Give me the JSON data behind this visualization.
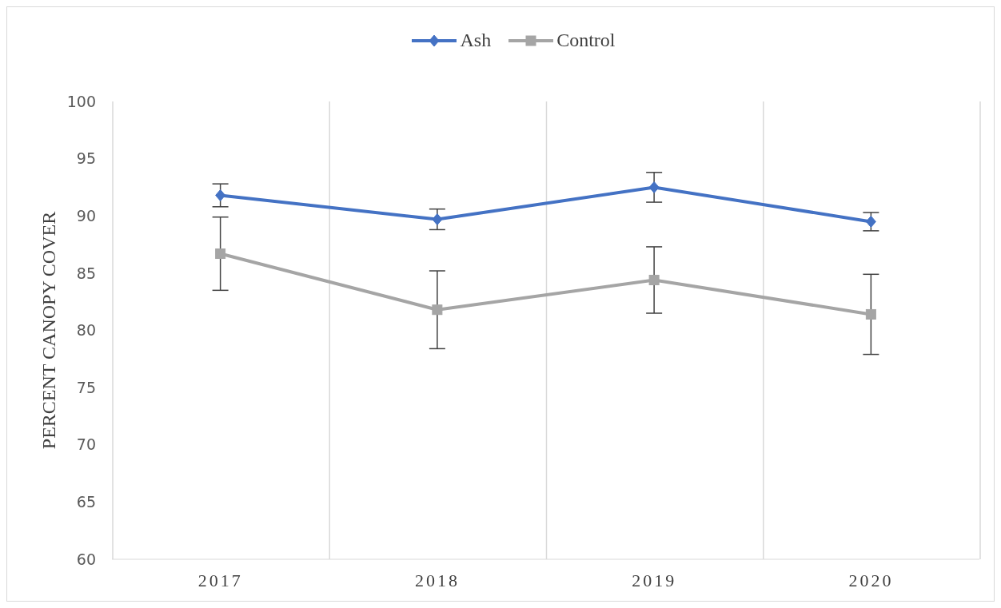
{
  "chart_data": {
    "type": "line",
    "ylabel": "PERCENT CANOPY COVER",
    "categories": [
      "2017",
      "2018",
      "2019",
      "2020"
    ],
    "series": [
      {
        "name": "Ash",
        "color": "#4472c4",
        "marker": "diamond",
        "values": [
          91.8,
          89.7,
          92.5,
          89.5
        ],
        "errors": [
          1.0,
          0.9,
          1.3,
          0.8
        ]
      },
      {
        "name": "Control",
        "color": "#a5a5a5",
        "marker": "square",
        "values": [
          86.7,
          81.8,
          84.4,
          81.4
        ],
        "errors": [
          3.2,
          3.4,
          2.9,
          3.5
        ]
      }
    ],
    "ylim": [
      60,
      100
    ],
    "yticks": [
      60,
      65,
      70,
      75,
      80,
      85,
      90,
      95,
      100
    ],
    "grid": "x",
    "legend": "top"
  }
}
